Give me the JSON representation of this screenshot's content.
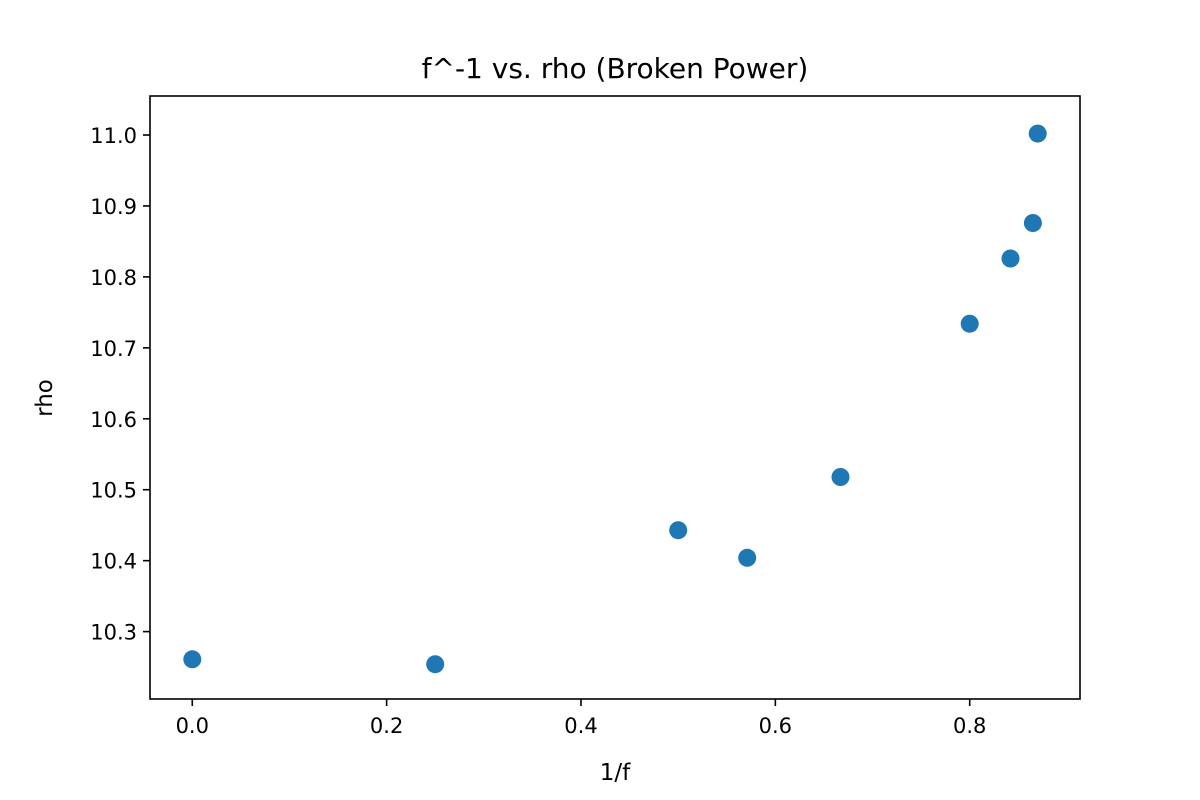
{
  "chart_data": {
    "type": "scatter",
    "title": "f^-1 vs. rho (Broken Power)",
    "xlabel": "1/f",
    "ylabel": "rho",
    "xlim": [
      -0.0435,
      0.9135
    ],
    "ylim": [
      10.205,
      11.055
    ],
    "xticks": [
      0.0,
      0.2,
      0.4,
      0.6,
      0.8
    ],
    "xtick_labels": [
      "0.0",
      "0.2",
      "0.4",
      "0.6",
      "0.8"
    ],
    "yticks": [
      10.3,
      10.4,
      10.5,
      10.6,
      10.7,
      10.8,
      10.9,
      11.0
    ],
    "ytick_labels": [
      "10.3",
      "10.4",
      "10.5",
      "10.6",
      "10.7",
      "10.8",
      "10.9",
      "11.0"
    ],
    "grid": false,
    "legend": "none",
    "marker_color": "#1f77b4",
    "points": [
      {
        "x": 0.0,
        "y": 10.261
      },
      {
        "x": 0.25,
        "y": 10.254
      },
      {
        "x": 0.5,
        "y": 10.443
      },
      {
        "x": 0.571,
        "y": 10.404
      },
      {
        "x": 0.667,
        "y": 10.518
      },
      {
        "x": 0.8,
        "y": 10.734
      },
      {
        "x": 0.842,
        "y": 10.826
      },
      {
        "x": 0.865,
        "y": 10.876
      },
      {
        "x": 0.87,
        "y": 11.002
      }
    ]
  }
}
